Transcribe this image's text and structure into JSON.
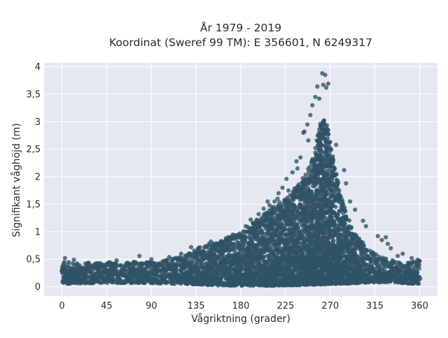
{
  "chart_data": {
    "type": "scatter",
    "title_line1": "År 1979 - 2019",
    "title_line2": "Koordinat (Sweref 99 TM): E 356601, N 6249317",
    "xlabel": "Vågriktning (grader)",
    "ylabel": "Signifikant våghöjd (m)",
    "xlim": [
      -18,
      378
    ],
    "ylim": [
      -0.17,
      4.07
    ],
    "xticks": [
      0,
      45,
      90,
      135,
      180,
      225,
      270,
      315,
      360
    ],
    "xtick_labels": [
      "0",
      "45",
      "90",
      "135",
      "180",
      "225",
      "270",
      "315",
      "360"
    ],
    "yticks": [
      0,
      0.5,
      1,
      1.5,
      2,
      2.5,
      3,
      3.5,
      4
    ],
    "ytick_labels": [
      "0",
      "0,5",
      "1",
      "1,5",
      "2",
      "2,5",
      "3",
      "3,5",
      "4"
    ],
    "grid": true,
    "colors": {
      "marker": "#2f5266",
      "plot_bg": "#e5e8f0",
      "grid": "#ffffff"
    },
    "envelope_upper": {
      "x": [
        0,
        10,
        20,
        30,
        45,
        60,
        75,
        90,
        100,
        110,
        120,
        130,
        135,
        145,
        160,
        170,
        180,
        190,
        200,
        210,
        220,
        230,
        235,
        240,
        245,
        250,
        255,
        258,
        260,
        262,
        264,
        266,
        268,
        270,
        272,
        275,
        278,
        282,
        286,
        290,
        295,
        300,
        305,
        310,
        315,
        320,
        330,
        340,
        350,
        360
      ],
      "y": [
        0.47,
        0.44,
        0.43,
        0.44,
        0.45,
        0.44,
        0.46,
        0.46,
        0.47,
        0.5,
        0.56,
        0.64,
        0.7,
        0.76,
        0.83,
        0.93,
        1.0,
        1.12,
        1.28,
        1.42,
        1.55,
        1.7,
        1.8,
        1.92,
        2.05,
        2.25,
        2.55,
        2.8,
        3.0,
        3.05,
        3.02,
        2.95,
        2.85,
        2.6,
        2.4,
        2.15,
        1.9,
        1.6,
        1.35,
        1.15,
        0.98,
        0.85,
        0.75,
        0.66,
        0.6,
        0.56,
        0.5,
        0.45,
        0.45,
        0.47
      ]
    },
    "envelope_lower": {
      "x": [
        0,
        20,
        40,
        60,
        80,
        100,
        120,
        140,
        160,
        180,
        200,
        220,
        240,
        260,
        270,
        290,
        310,
        330,
        350,
        360
      ],
      "y": [
        0.05,
        0.06,
        0.07,
        0.07,
        0.07,
        0.06,
        0.05,
        0.04,
        0.02,
        0.02,
        0.02,
        0.02,
        0.03,
        0.04,
        0.05,
        0.06,
        0.08,
        0.08,
        0.06,
        0.05
      ]
    },
    "points": [
      {
        "x": 262,
        "y": 3.88
      },
      {
        "x": 265,
        "y": 3.85
      },
      {
        "x": 268,
        "y": 3.69
      },
      {
        "x": 263,
        "y": 3.67
      },
      {
        "x": 266,
        "y": 3.62
      },
      {
        "x": 257,
        "y": 3.64
      },
      {
        "x": 255,
        "y": 3.45
      },
      {
        "x": 259,
        "y": 3.42
      },
      {
        "x": 252,
        "y": 3.3
      },
      {
        "x": 250,
        "y": 3.12
      },
      {
        "x": 247,
        "y": 2.95
      },
      {
        "x": 244,
        "y": 2.82
      },
      {
        "x": 243,
        "y": 2.8
      },
      {
        "x": 248,
        "y": 2.66
      },
      {
        "x": 276,
        "y": 2.58
      },
      {
        "x": 240,
        "y": 2.35
      },
      {
        "x": 236,
        "y": 2.28
      },
      {
        "x": 237,
        "y": 2.15
      },
      {
        "x": 232,
        "y": 2.08
      },
      {
        "x": 284,
        "y": 2.12
      },
      {
        "x": 226,
        "y": 1.96
      },
      {
        "x": 222,
        "y": 1.8
      },
      {
        "x": 228,
        "y": 1.75
      },
      {
        "x": 286,
        "y": 1.88
      },
      {
        "x": 218,
        "y": 1.7
      },
      {
        "x": 214,
        "y": 1.55
      },
      {
        "x": 207,
        "y": 1.55
      },
      {
        "x": 217,
        "y": 1.6
      },
      {
        "x": 209,
        "y": 1.48
      },
      {
        "x": 203,
        "y": 1.42
      },
      {
        "x": 198,
        "y": 1.32
      },
      {
        "x": 290,
        "y": 1.55
      },
      {
        "x": 295,
        "y": 1.4
      },
      {
        "x": 303,
        "y": 1.2
      },
      {
        "x": 306,
        "y": 1.1
      },
      {
        "x": 318,
        "y": 0.92
      },
      {
        "x": 326,
        "y": 0.9
      },
      {
        "x": 322,
        "y": 0.85
      },
      {
        "x": 331,
        "y": 0.7
      },
      {
        "x": 328,
        "y": 0.78
      },
      {
        "x": 190,
        "y": 1.22
      },
      {
        "x": 195,
        "y": 1.18
      },
      {
        "x": 185,
        "y": 1.1
      },
      {
        "x": 343,
        "y": 0.6
      },
      {
        "x": 150,
        "y": 0.82
      },
      {
        "x": 148,
        "y": 0.78
      },
      {
        "x": 165,
        "y": 0.88
      },
      {
        "x": 130,
        "y": 0.72
      },
      {
        "x": 120,
        "y": 0.6
      },
      {
        "x": 108,
        "y": 0.54
      },
      {
        "x": 78,
        "y": 0.56
      },
      {
        "x": 3,
        "y": 0.52
      },
      {
        "x": 12,
        "y": 0.49
      },
      {
        "x": 55,
        "y": 0.48
      },
      {
        "x": 90,
        "y": 0.5
      },
      {
        "x": 352,
        "y": 0.52
      },
      {
        "x": 358,
        "y": 0.49
      },
      {
        "x": 338,
        "y": 0.56
      }
    ]
  }
}
